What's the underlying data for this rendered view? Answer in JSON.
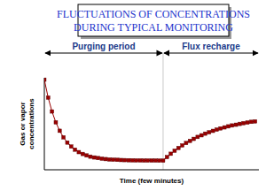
{
  "chart_data": {
    "type": "line",
    "title": [
      "FLUCTUATIONS OF CONCENTRATIONS",
      "DURING TYPICAL MONITORING"
    ],
    "x_label": "Time (few minutes)",
    "y_label": [
      "Gas or vapor",
      "concentrations"
    ],
    "tick_labels": false,
    "marker": "square",
    "color": "#990000",
    "xlim": [
      0,
      56
    ],
    "ylim": [
      0,
      100
    ],
    "annotations": [
      {
        "text": "Purging period",
        "x": [
          0,
          31
        ]
      },
      {
        "text": "Flux recharge",
        "x": [
          31,
          56
        ]
      }
    ],
    "x": [
      0,
      1,
      2,
      3,
      4,
      5,
      6,
      7,
      8,
      9,
      10,
      11,
      12,
      13,
      14,
      15,
      16,
      17,
      18,
      19,
      20,
      21,
      22,
      23,
      24,
      25,
      26,
      27,
      28,
      29,
      30,
      31,
      32,
      33,
      34,
      35,
      36,
      37,
      38,
      39,
      40,
      41,
      42,
      43,
      44,
      45,
      46,
      47,
      48,
      49,
      50,
      51,
      52,
      53,
      54,
      55
    ],
    "values": [
      98,
      78.5,
      63.4,
      51.6,
      42.4,
      35.3,
      29.6,
      25.3,
      21.9,
      19.2,
      17.2,
      15.6,
      14.3,
      13.4,
      12.7,
      12.1,
      11.6,
      11.2,
      11,
      10.8,
      10.6,
      10.5,
      10.4,
      10.3,
      10.2,
      10.2,
      10.1,
      10.1,
      10.1,
      10.1,
      10,
      10,
      13.8,
      17.4,
      20.7,
      23.7,
      26.5,
      29.1,
      31.4,
      33.6,
      35.7,
      37.5,
      39.3,
      40.8,
      42.3,
      43.7,
      45,
      46.1,
      47.2,
      48.2,
      49,
      49.9,
      50.7,
      51.4,
      52.1,
      52.6
    ]
  }
}
